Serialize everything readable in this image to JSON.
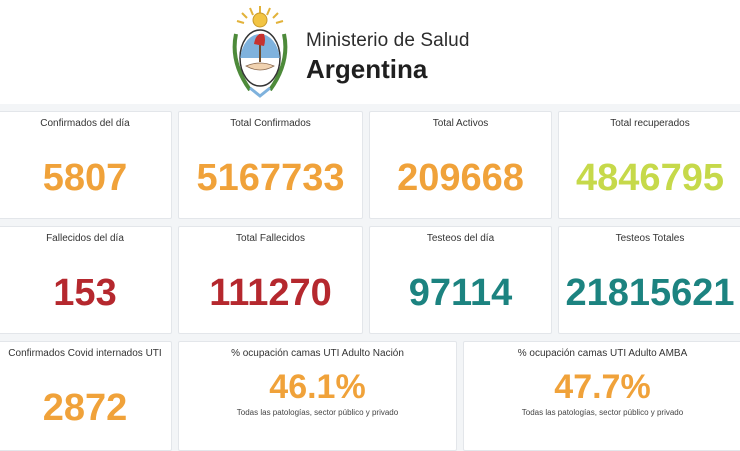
{
  "header": {
    "ministry": "Ministerio de Salud",
    "country": "Argentina"
  },
  "colors": {
    "orange": "#f0a23a",
    "lime": "#c6d94a",
    "red": "#b5282e",
    "teal": "#1c8380"
  },
  "row1": [
    {
      "label": "Confirmados del día",
      "value": "5807"
    },
    {
      "label": "Total Confirmados",
      "value": "5167733"
    },
    {
      "label": "Total Activos",
      "value": "209668"
    },
    {
      "label": "Total recuperados",
      "value": "4846795"
    }
  ],
  "row2": [
    {
      "label": "Fallecidos del día",
      "value": "153"
    },
    {
      "label": "Total Fallecidos",
      "value": "111270"
    },
    {
      "label": "Testeos del día",
      "value": "97114"
    },
    {
      "label": "Testeos Totales",
      "value": "21815621"
    }
  ],
  "row3": [
    {
      "label": "Confirmados Covid internados UTI",
      "value": "2872"
    },
    {
      "label": "% ocupación camas UTI Adulto Nación",
      "value": "46.1%",
      "note": "Todas las patologías, sector público y privado"
    },
    {
      "label": "% ocupación camas UTI Adulto AMBA",
      "value": "47.7%",
      "note": "Todas las patologías, sector público y privado"
    }
  ]
}
